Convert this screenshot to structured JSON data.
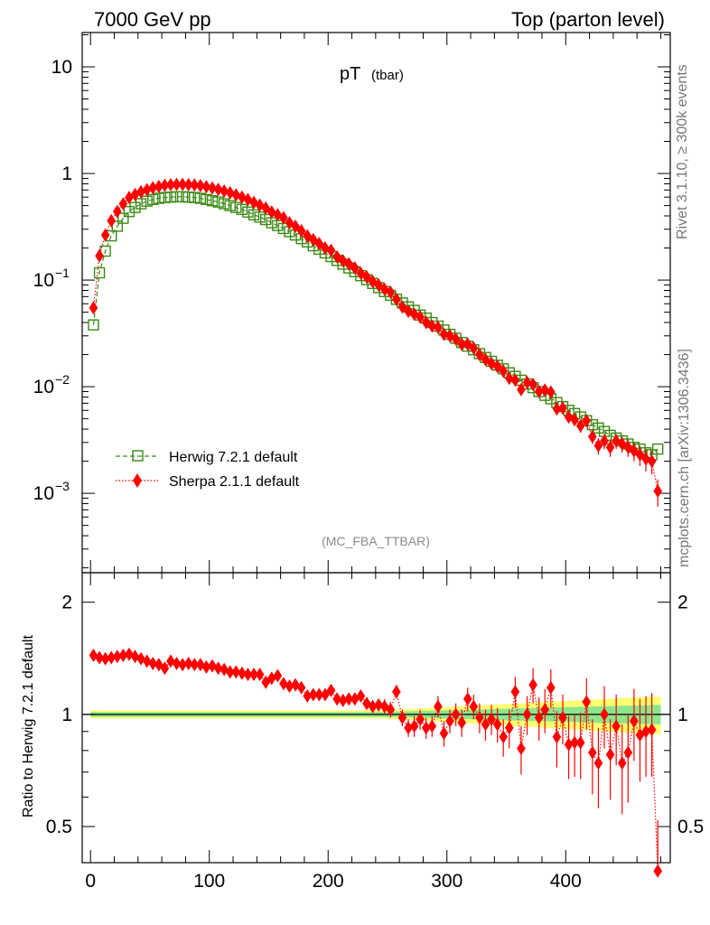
{
  "header": {
    "left": "7000 GeV pp",
    "right": "Top (parton level)"
  },
  "side": {
    "rivet": "Rivet 3.1.10, ≥ 300k events",
    "mcplots": "mcplots.cern.ch [arXiv:1306.3436]"
  },
  "plot": {
    "title_main": "pT",
    "title_sub": "(tbar)",
    "watermark": "(MC_FBA_TTBAR)",
    "ratio_ylabel": "Ratio to Herwig 7.2.1 default"
  },
  "colors": {
    "herwig": "#3a8a12",
    "sherpa": "#ff0000",
    "band_inner": "#8de58d",
    "band_outer": "#ffff70"
  },
  "chart_data": [
    {
      "type": "scatter",
      "panel": "main",
      "yscale": "log",
      "xlim": [
        -7,
        488
      ],
      "ylim": [
        0.00018,
        21
      ],
      "x_ticks": [
        0,
        100,
        200,
        300,
        400
      ],
      "y_ticks": [
        {
          "value": 10,
          "base": "10",
          "exp": ""
        },
        {
          "value": 1,
          "base": "1",
          "exp": ""
        },
        {
          "value": 0.1,
          "base": "10",
          "exp": "−1"
        },
        {
          "value": 0.01,
          "base": "10",
          "exp": "−2"
        },
        {
          "value": 0.001,
          "base": "10",
          "exp": "−3"
        }
      ],
      "legend_position": "bottom-left",
      "x": [
        2.5,
        7.5,
        12.5,
        17.5,
        22.5,
        27.5,
        32.5,
        37.5,
        42.5,
        47.5,
        52.5,
        57.5,
        62.5,
        67.5,
        72.5,
        77.5,
        82.5,
        87.5,
        92.5,
        97.5,
        102.5,
        107.5,
        112.5,
        117.5,
        122.5,
        127.5,
        132.5,
        137.5,
        142.5,
        147.5,
        152.5,
        157.5,
        162.5,
        167.5,
        172.5,
        177.5,
        182.5,
        187.5,
        192.5,
        197.5,
        202.5,
        207.5,
        212.5,
        217.5,
        222.5,
        227.5,
        232.5,
        237.5,
        242.5,
        247.5,
        252.5,
        257.5,
        262.5,
        267.5,
        272.5,
        277.5,
        282.5,
        287.5,
        292.5,
        297.5,
        302.5,
        307.5,
        312.5,
        317.5,
        322.5,
        327.5,
        332.5,
        337.5,
        342.5,
        347.5,
        352.5,
        357.5,
        362.5,
        367.5,
        372.5,
        377.5,
        382.5,
        387.5,
        392.5,
        397.5,
        402.5,
        407.5,
        412.5,
        417.5,
        422.5,
        427.5,
        432.5,
        437.5,
        442.5,
        447.5,
        452.5,
        457.5,
        462.5,
        467.5,
        472.5,
        477.5
      ],
      "series": [
        {
          "name": "Herwig 7.2.1 default",
          "marker": "open-square",
          "line": "dashed",
          "values": [
            0.038,
            0.117,
            0.187,
            0.26,
            0.32,
            0.38,
            0.44,
            0.48,
            0.52,
            0.55,
            0.57,
            0.585,
            0.595,
            0.6,
            0.605,
            0.605,
            0.6,
            0.595,
            0.585,
            0.57,
            0.555,
            0.54,
            0.52,
            0.5,
            0.48,
            0.46,
            0.435,
            0.41,
            0.39,
            0.37,
            0.345,
            0.325,
            0.305,
            0.285,
            0.265,
            0.245,
            0.228,
            0.21,
            0.195,
            0.18,
            0.166,
            0.153,
            0.141,
            0.13,
            0.12,
            0.11,
            0.101,
            0.093,
            0.085,
            0.078,
            0.072,
            0.066,
            0.061,
            0.056,
            0.052,
            0.047,
            0.044,
            0.04,
            0.037,
            0.034,
            0.031,
            0.0285,
            0.026,
            0.024,
            0.0222,
            0.0204,
            0.0188,
            0.0173,
            0.0159,
            0.0147,
            0.0135,
            0.0125,
            0.0115,
            0.0106,
            0.0098,
            0.009,
            0.0083,
            0.0077,
            0.0071,
            0.0065,
            0.006,
            0.0056,
            0.0052,
            0.0048,
            0.0044,
            0.0041,
            0.0038,
            0.0035,
            0.0033,
            0.0031,
            0.0029,
            0.0027,
            0.0026,
            0.0024,
            0.0023,
            0.0026
          ]
        },
        {
          "name": "Sherpa 2.1.1 default",
          "marker": "filled-diamond",
          "line": "dotted",
          "values": [
            0.055,
            0.169,
            0.264,
            0.36,
            0.44,
            0.52,
            0.595,
            0.635,
            0.675,
            0.705,
            0.735,
            0.755,
            0.775,
            0.785,
            0.79,
            0.79,
            0.785,
            0.78,
            0.77,
            0.75,
            0.73,
            0.71,
            0.685,
            0.66,
            0.63,
            0.6,
            0.57,
            0.535,
            0.505,
            0.475,
            0.435,
            0.41,
            0.385,
            0.345,
            0.32,
            0.29,
            0.26,
            0.24,
            0.22,
            0.2,
            0.19,
            0.165,
            0.152,
            0.142,
            0.13,
            0.116,
            0.107,
            0.097,
            0.09,
            0.082,
            0.077,
            0.066,
            0.056,
            0.051,
            0.048,
            0.045,
            0.04,
            0.037,
            0.036,
            0.031,
            0.03,
            0.028,
            0.025,
            0.025,
            0.023,
            0.02,
            0.018,
            0.0165,
            0.0155,
            0.014,
            0.012,
            0.0115,
            0.0094,
            0.011,
            0.0105,
            0.009,
            0.0093,
            0.0089,
            0.0062,
            0.0063,
            0.0052,
            0.0049,
            0.0043,
            0.0048,
            0.0034,
            0.0028,
            0.0031,
            0.0027,
            0.0031,
            0.0029,
            0.0027,
            0.0025,
            0.0023,
            0.0021,
            0.002,
            0.00105
          ],
          "yerr": [
            0.004,
            0.006,
            0.008,
            0.01,
            0.012,
            0.013,
            0.014,
            0.015,
            0.015,
            0.015,
            0.015,
            0.015,
            0.015,
            0.015,
            0.015,
            0.015,
            0.015,
            0.015,
            0.015,
            0.015,
            0.015,
            0.015,
            0.014,
            0.014,
            0.014,
            0.013,
            0.013,
            0.012,
            0.012,
            0.011,
            0.011,
            0.01,
            0.01,
            0.009,
            0.009,
            0.008,
            0.008,
            0.007,
            0.007,
            0.006,
            0.006,
            0.0055,
            0.005,
            0.0048,
            0.0045,
            0.0042,
            0.004,
            0.0037,
            0.0035,
            0.0033,
            0.0032,
            0.003,
            0.0028,
            0.0026,
            0.0025,
            0.0024,
            0.0022,
            0.0021,
            0.002,
            0.0019,
            0.0018,
            0.0017,
            0.0016,
            0.0016,
            0.0015,
            0.0014,
            0.0013,
            0.0012,
            0.0012,
            0.0011,
            0.001,
            0.001,
            0.0009,
            0.0009,
            0.0009,
            0.0008,
            0.0008,
            0.0008,
            0.0007,
            0.0007,
            0.0006,
            0.0006,
            0.0006,
            0.0006,
            0.0005,
            0.0005,
            0.0005,
            0.0005,
            0.0005,
            0.0005,
            0.0005,
            0.0005,
            0.0005,
            0.0005,
            0.0005,
            0.0003
          ]
        }
      ]
    },
    {
      "type": "scatter",
      "panel": "ratio",
      "yscale": "log",
      "xlim": [
        -7,
        488
      ],
      "ylim": [
        0.4,
        2.4
      ],
      "x_ticks": [
        0,
        100,
        200,
        300,
        400
      ],
      "y_ticks": [
        0.5,
        1,
        2
      ],
      "x": [
        2.5,
        7.5,
        12.5,
        17.5,
        22.5,
        27.5,
        32.5,
        37.5,
        42.5,
        47.5,
        52.5,
        57.5,
        62.5,
        67.5,
        72.5,
        77.5,
        82.5,
        87.5,
        92.5,
        97.5,
        102.5,
        107.5,
        112.5,
        117.5,
        122.5,
        127.5,
        132.5,
        137.5,
        142.5,
        147.5,
        152.5,
        157.5,
        162.5,
        167.5,
        172.5,
        177.5,
        182.5,
        187.5,
        192.5,
        197.5,
        202.5,
        207.5,
        212.5,
        217.5,
        222.5,
        227.5,
        232.5,
        237.5,
        242.5,
        247.5,
        252.5,
        257.5,
        262.5,
        267.5,
        272.5,
        277.5,
        282.5,
        287.5,
        292.5,
        297.5,
        302.5,
        307.5,
        312.5,
        317.5,
        322.5,
        327.5,
        332.5,
        337.5,
        342.5,
        347.5,
        352.5,
        357.5,
        362.5,
        367.5,
        372.5,
        377.5,
        382.5,
        387.5,
        392.5,
        397.5,
        402.5,
        407.5,
        412.5,
        417.5,
        422.5,
        427.5,
        432.5,
        437.5,
        442.5,
        447.5,
        452.5,
        457.5,
        462.5,
        467.5,
        472.5,
        477.5
      ],
      "series": [
        {
          "name": "Herwig 7.2.1 default",
          "reference_value": 1,
          "band_inner_halfwidth": [
            0.015,
            0.015,
            0.015,
            0.015,
            0.015,
            0.015,
            0.015,
            0.015,
            0.015,
            0.015,
            0.015,
            0.015,
            0.015,
            0.015,
            0.015,
            0.015,
            0.015,
            0.015,
            0.015,
            0.015,
            0.015,
            0.015,
            0.015,
            0.015,
            0.015,
            0.015,
            0.015,
            0.015,
            0.015,
            0.015,
            0.015,
            0.015,
            0.015,
            0.015,
            0.015,
            0.015,
            0.015,
            0.015,
            0.015,
            0.015,
            0.015,
            0.015,
            0.015,
            0.015,
            0.015,
            0.015,
            0.015,
            0.015,
            0.015,
            0.015,
            0.016,
            0.017,
            0.018,
            0.019,
            0.02,
            0.021,
            0.022,
            0.023,
            0.024,
            0.025,
            0.026,
            0.027,
            0.028,
            0.029,
            0.03,
            0.031,
            0.032,
            0.033,
            0.034,
            0.035,
            0.036,
            0.037,
            0.038,
            0.039,
            0.04,
            0.041,
            0.042,
            0.043,
            0.044,
            0.045,
            0.046,
            0.047,
            0.048,
            0.049,
            0.05,
            0.051,
            0.052,
            0.053,
            0.054,
            0.055,
            0.056,
            0.057,
            0.058,
            0.059,
            0.06,
            0.06
          ],
          "band_outer_halfwidth": [
            0.025,
            0.025,
            0.025,
            0.025,
            0.025,
            0.025,
            0.025,
            0.025,
            0.025,
            0.025,
            0.025,
            0.025,
            0.025,
            0.025,
            0.025,
            0.025,
            0.025,
            0.025,
            0.025,
            0.025,
            0.025,
            0.025,
            0.025,
            0.025,
            0.025,
            0.025,
            0.025,
            0.025,
            0.025,
            0.025,
            0.025,
            0.025,
            0.025,
            0.025,
            0.025,
            0.025,
            0.025,
            0.025,
            0.025,
            0.025,
            0.025,
            0.025,
            0.025,
            0.025,
            0.025,
            0.025,
            0.025,
            0.025,
            0.025,
            0.025,
            0.027,
            0.029,
            0.031,
            0.033,
            0.035,
            0.037,
            0.039,
            0.041,
            0.043,
            0.045,
            0.047,
            0.049,
            0.051,
            0.053,
            0.055,
            0.057,
            0.059,
            0.061,
            0.063,
            0.065,
            0.067,
            0.069,
            0.071,
            0.073,
            0.075,
            0.077,
            0.079,
            0.081,
            0.083,
            0.085,
            0.087,
            0.089,
            0.091,
            0.093,
            0.095,
            0.097,
            0.099,
            0.101,
            0.103,
            0.105,
            0.107,
            0.109,
            0.111,
            0.113,
            0.115,
            0.115
          ]
        },
        {
          "name": "Sherpa 2.1.1 default",
          "values": [
            1.44,
            1.42,
            1.41,
            1.42,
            1.43,
            1.44,
            1.45,
            1.43,
            1.41,
            1.39,
            1.37,
            1.36,
            1.33,
            1.39,
            1.37,
            1.36,
            1.37,
            1.36,
            1.36,
            1.34,
            1.35,
            1.33,
            1.32,
            1.3,
            1.3,
            1.29,
            1.28,
            1.28,
            1.28,
            1.22,
            1.25,
            1.27,
            1.21,
            1.19,
            1.2,
            1.18,
            1.12,
            1.13,
            1.13,
            1.13,
            1.16,
            1.1,
            1.09,
            1.1,
            1.1,
            1.12,
            1.07,
            1.05,
            1.06,
            1.05,
            1.03,
            1.15,
            0.98,
            0.92,
            0.93,
            0.97,
            0.92,
            0.93,
            1.05,
            0.89,
            0.96,
            1.0,
            0.95,
            1.1,
            1.05,
            0.98,
            0.94,
            0.97,
            0.94,
            0.87,
            0.92,
            1.15,
            0.81,
            1.0,
            1.2,
            0.98,
            1.03,
            1.18,
            0.87,
            0.98,
            0.83,
            0.84,
            0.84,
            1.08,
            0.79,
            0.74,
            1.0,
            0.78,
            0.93,
            0.74,
            0.79,
            0.96,
            0.88,
            0.9,
            0.91,
            0.37
          ],
          "yerr": [
            0.04,
            0.03,
            0.03,
            0.03,
            0.03,
            0.03,
            0.03,
            0.03,
            0.03,
            0.03,
            0.03,
            0.03,
            0.03,
            0.03,
            0.03,
            0.03,
            0.03,
            0.03,
            0.03,
            0.03,
            0.03,
            0.03,
            0.03,
            0.03,
            0.03,
            0.03,
            0.03,
            0.03,
            0.03,
            0.03,
            0.03,
            0.03,
            0.03,
            0.03,
            0.03,
            0.03,
            0.03,
            0.03,
            0.03,
            0.03,
            0.03,
            0.04,
            0.04,
            0.04,
            0.04,
            0.04,
            0.04,
            0.04,
            0.04,
            0.05,
            0.05,
            0.05,
            0.05,
            0.05,
            0.06,
            0.06,
            0.06,
            0.06,
            0.07,
            0.07,
            0.07,
            0.07,
            0.08,
            0.08,
            0.08,
            0.09,
            0.09,
            0.09,
            0.1,
            0.1,
            0.11,
            0.11,
            0.12,
            0.12,
            0.13,
            0.13,
            0.14,
            0.14,
            0.15,
            0.15,
            0.16,
            0.16,
            0.17,
            0.17,
            0.18,
            0.18,
            0.19,
            0.19,
            0.2,
            0.2,
            0.21,
            0.21,
            0.22,
            0.22,
            0.23,
            0.15
          ]
        }
      ]
    }
  ]
}
